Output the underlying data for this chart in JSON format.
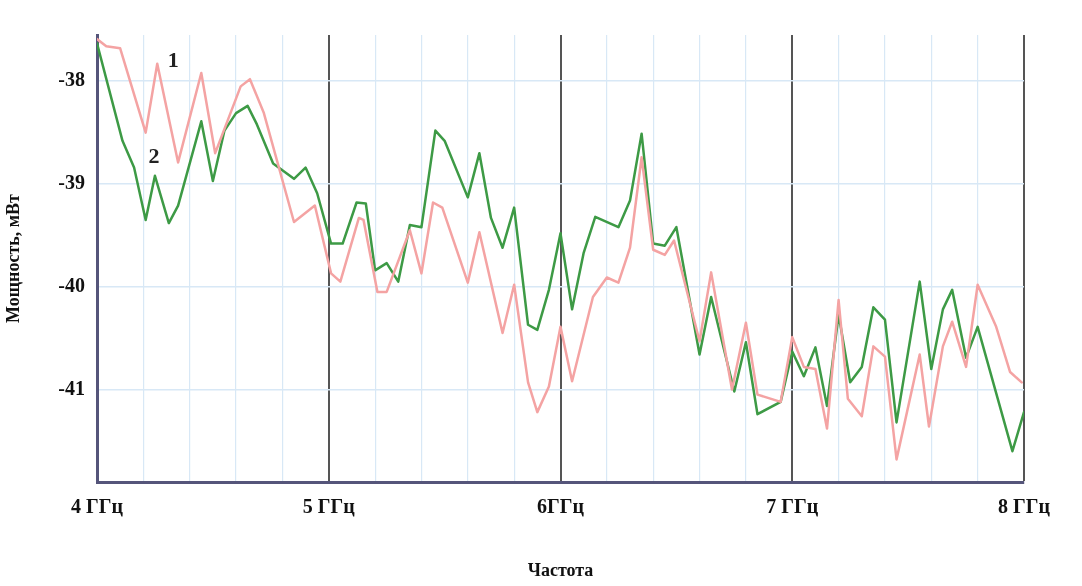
{
  "chart_data": {
    "type": "line",
    "xlabel": "Частота",
    "ylabel": "Мощность, мВт",
    "xlim": [
      4,
      8
    ],
    "ylim": [
      -41.9,
      -37.55
    ],
    "xticks": [
      {
        "value": 4,
        "label": "4 ГГц"
      },
      {
        "value": 4.2,
        "label": null
      },
      {
        "value": 4.4,
        "label": null
      },
      {
        "value": 4.6,
        "label": null
      },
      {
        "value": 4.8,
        "label": null
      },
      {
        "value": 5,
        "label": "5 ГГц"
      },
      {
        "value": 5.2,
        "label": null
      },
      {
        "value": 5.4,
        "label": null
      },
      {
        "value": 5.6,
        "label": null
      },
      {
        "value": 5.8,
        "label": null
      },
      {
        "value": 6,
        "label": "6ГГц"
      },
      {
        "value": 6.2,
        "label": null
      },
      {
        "value": 6.4,
        "label": null
      },
      {
        "value": 6.6,
        "label": null
      },
      {
        "value": 6.8,
        "label": null
      },
      {
        "value": 7,
        "label": "7 ГГц"
      },
      {
        "value": 7.2,
        "label": null
      },
      {
        "value": 7.4,
        "label": null
      },
      {
        "value": 7.6,
        "label": null
      },
      {
        "value": 7.8,
        "label": null
      },
      {
        "value": 8,
        "label": "8 ГГц"
      }
    ],
    "yticks": [
      -41,
      -40,
      -39,
      -38
    ],
    "grid": true,
    "marker": "none",
    "line_style": "solid",
    "series": [
      {
        "name": "1",
        "color": "#f4a3a3",
        "x": [
          4.0,
          4.04,
          4.1,
          4.21,
          4.26,
          4.35,
          4.45,
          4.51,
          4.62,
          4.66,
          4.72,
          4.85,
          4.94,
          5.01,
          5.05,
          5.13,
          5.15,
          5.21,
          5.25,
          5.35,
          5.4,
          5.45,
          5.49,
          5.6,
          5.65,
          5.75,
          5.8,
          5.86,
          5.9,
          5.95,
          6.0,
          6.05,
          6.14,
          6.2,
          6.25,
          6.3,
          6.35,
          6.4,
          6.45,
          6.49,
          6.6,
          6.65,
          6.74,
          6.8,
          6.85,
          6.95,
          7.0,
          7.05,
          7.1,
          7.15,
          7.2,
          7.24,
          7.3,
          7.35,
          7.4,
          7.45,
          7.55,
          7.59,
          7.65,
          7.69,
          7.75,
          7.8,
          7.88,
          7.94,
          7.99
        ],
        "values": [
          -37.59,
          -37.66,
          -37.68,
          -38.5,
          -37.83,
          -38.79,
          -37.92,
          -38.7,
          -38.05,
          -37.98,
          -38.31,
          -39.37,
          -39.21,
          -39.87,
          -39.95,
          -39.33,
          -39.35,
          -40.05,
          -40.05,
          -39.45,
          -39.87,
          -39.18,
          -39.23,
          -39.96,
          -39.47,
          -40.45,
          -39.98,
          -40.93,
          -41.22,
          -40.97,
          -40.39,
          -40.92,
          -40.1,
          -39.91,
          -39.96,
          -39.62,
          -38.74,
          -39.64,
          -39.69,
          -39.55,
          -40.53,
          -39.86,
          -41.0,
          -40.35,
          -41.05,
          -41.12,
          -40.49,
          -40.78,
          -40.8,
          -41.38,
          -40.13,
          -41.09,
          -41.26,
          -40.58,
          -40.68,
          -41.68,
          -40.66,
          -41.36,
          -40.58,
          -40.34,
          -40.78,
          -39.98,
          -40.39,
          -40.83,
          -40.93
        ]
      },
      {
        "name": "2",
        "color": "#3d9a45",
        "x": [
          4.0,
          4.11,
          4.16,
          4.21,
          4.25,
          4.31,
          4.35,
          4.45,
          4.5,
          4.55,
          4.6,
          4.65,
          4.69,
          4.76,
          4.85,
          4.9,
          4.95,
          5.01,
          5.06,
          5.12,
          5.16,
          5.2,
          5.25,
          5.3,
          5.35,
          5.4,
          5.46,
          5.5,
          5.6,
          5.65,
          5.7,
          5.75,
          5.8,
          5.86,
          5.9,
          5.95,
          6.0,
          6.05,
          6.1,
          6.15,
          6.25,
          6.3,
          6.35,
          6.4,
          6.45,
          6.5,
          6.6,
          6.65,
          6.75,
          6.8,
          6.85,
          6.95,
          7.0,
          7.05,
          7.1,
          7.15,
          7.2,
          7.25,
          7.3,
          7.35,
          7.4,
          7.45,
          7.55,
          7.6,
          7.65,
          7.69,
          7.75,
          7.8,
          7.95,
          8.0
        ],
        "values": [
          -37.63,
          -38.58,
          -38.84,
          -39.35,
          -38.92,
          -39.38,
          -39.21,
          -38.39,
          -38.97,
          -38.48,
          -38.31,
          -38.24,
          -38.42,
          -38.8,
          -38.95,
          -38.84,
          -39.09,
          -39.58,
          -39.58,
          -39.18,
          -39.19,
          -39.84,
          -39.77,
          -39.95,
          -39.4,
          -39.42,
          -38.48,
          -38.58,
          -39.13,
          -38.7,
          -39.33,
          -39.62,
          -39.23,
          -40.37,
          -40.42,
          -40.03,
          -39.48,
          -40.22,
          -39.67,
          -39.32,
          -39.42,
          -39.16,
          -38.51,
          -39.58,
          -39.6,
          -39.42,
          -40.66,
          -40.1,
          -41.02,
          -40.54,
          -41.24,
          -41.12,
          -40.63,
          -40.87,
          -40.59,
          -41.16,
          -40.27,
          -40.93,
          -40.78,
          -40.2,
          -40.32,
          -41.32,
          -39.95,
          -40.8,
          -40.22,
          -40.03,
          -40.69,
          -40.39,
          -41.6,
          -41.22
        ]
      }
    ]
  }
}
